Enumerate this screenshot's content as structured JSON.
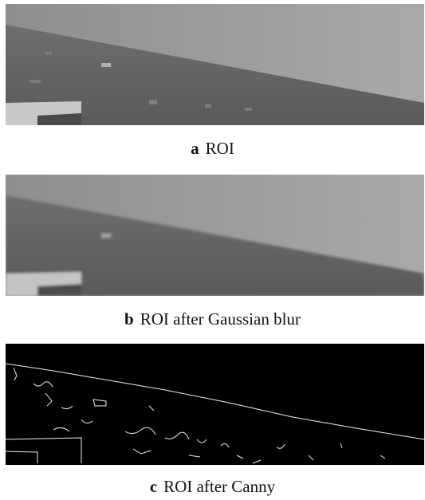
{
  "panels": [
    {
      "label": "a",
      "caption": "ROI"
    },
    {
      "label": "b",
      "caption": "ROI after Gaussian blur"
    },
    {
      "label": "c",
      "caption": "ROI after Canny"
    }
  ]
}
